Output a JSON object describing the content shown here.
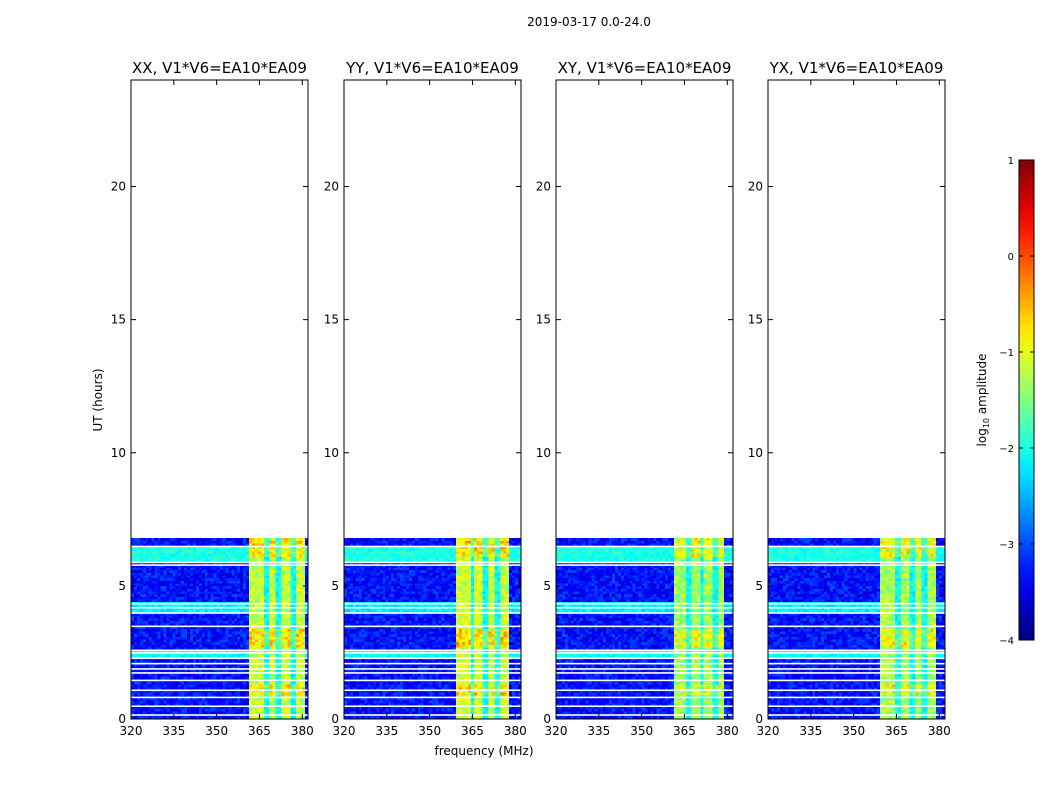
{
  "chart_data": {
    "type": "heatmap",
    "suptitle": "2019-03-17 0.0-24.0",
    "xlabel": "frequency (MHz)",
    "ylabel": "UT (hours)",
    "xlim": [
      320,
      382
    ],
    "ylim": [
      0,
      24
    ],
    "xticks": [
      320,
      335,
      350,
      365,
      380
    ],
    "yticks": [
      0,
      5,
      10,
      15,
      20
    ],
    "data_end_ut_hours": 6.8,
    "panels": [
      {
        "title": "XX, V1*V6=EA10*EA09",
        "band_start_mhz": 361.5,
        "band_end_mhz": 380.5,
        "offset": 0.0
      },
      {
        "title": "YY, V1*V6=EA10*EA09",
        "band_start_mhz": 359.5,
        "band_end_mhz": 377.5,
        "offset": 0.05
      },
      {
        "title": "XY, V1*V6=EA10*EA09",
        "band_start_mhz": 361.5,
        "band_end_mhz": 379.0,
        "offset": -0.2
      },
      {
        "title": "YX, V1*V6=EA10*EA09",
        "band_start_mhz": 359.5,
        "band_end_mhz": 379.0,
        "offset": -0.15
      }
    ],
    "colorbar": {
      "label_prefix": "log",
      "label_subscript": "10",
      "label_suffix": " amplitude",
      "min": -4,
      "max": 1,
      "ticks": [
        1,
        0,
        -1,
        -2,
        -3,
        -4
      ],
      "tick_labels": [
        "1",
        "0",
        "−1",
        "−2",
        "−3",
        "−4"
      ],
      "colormap": "jet"
    }
  }
}
